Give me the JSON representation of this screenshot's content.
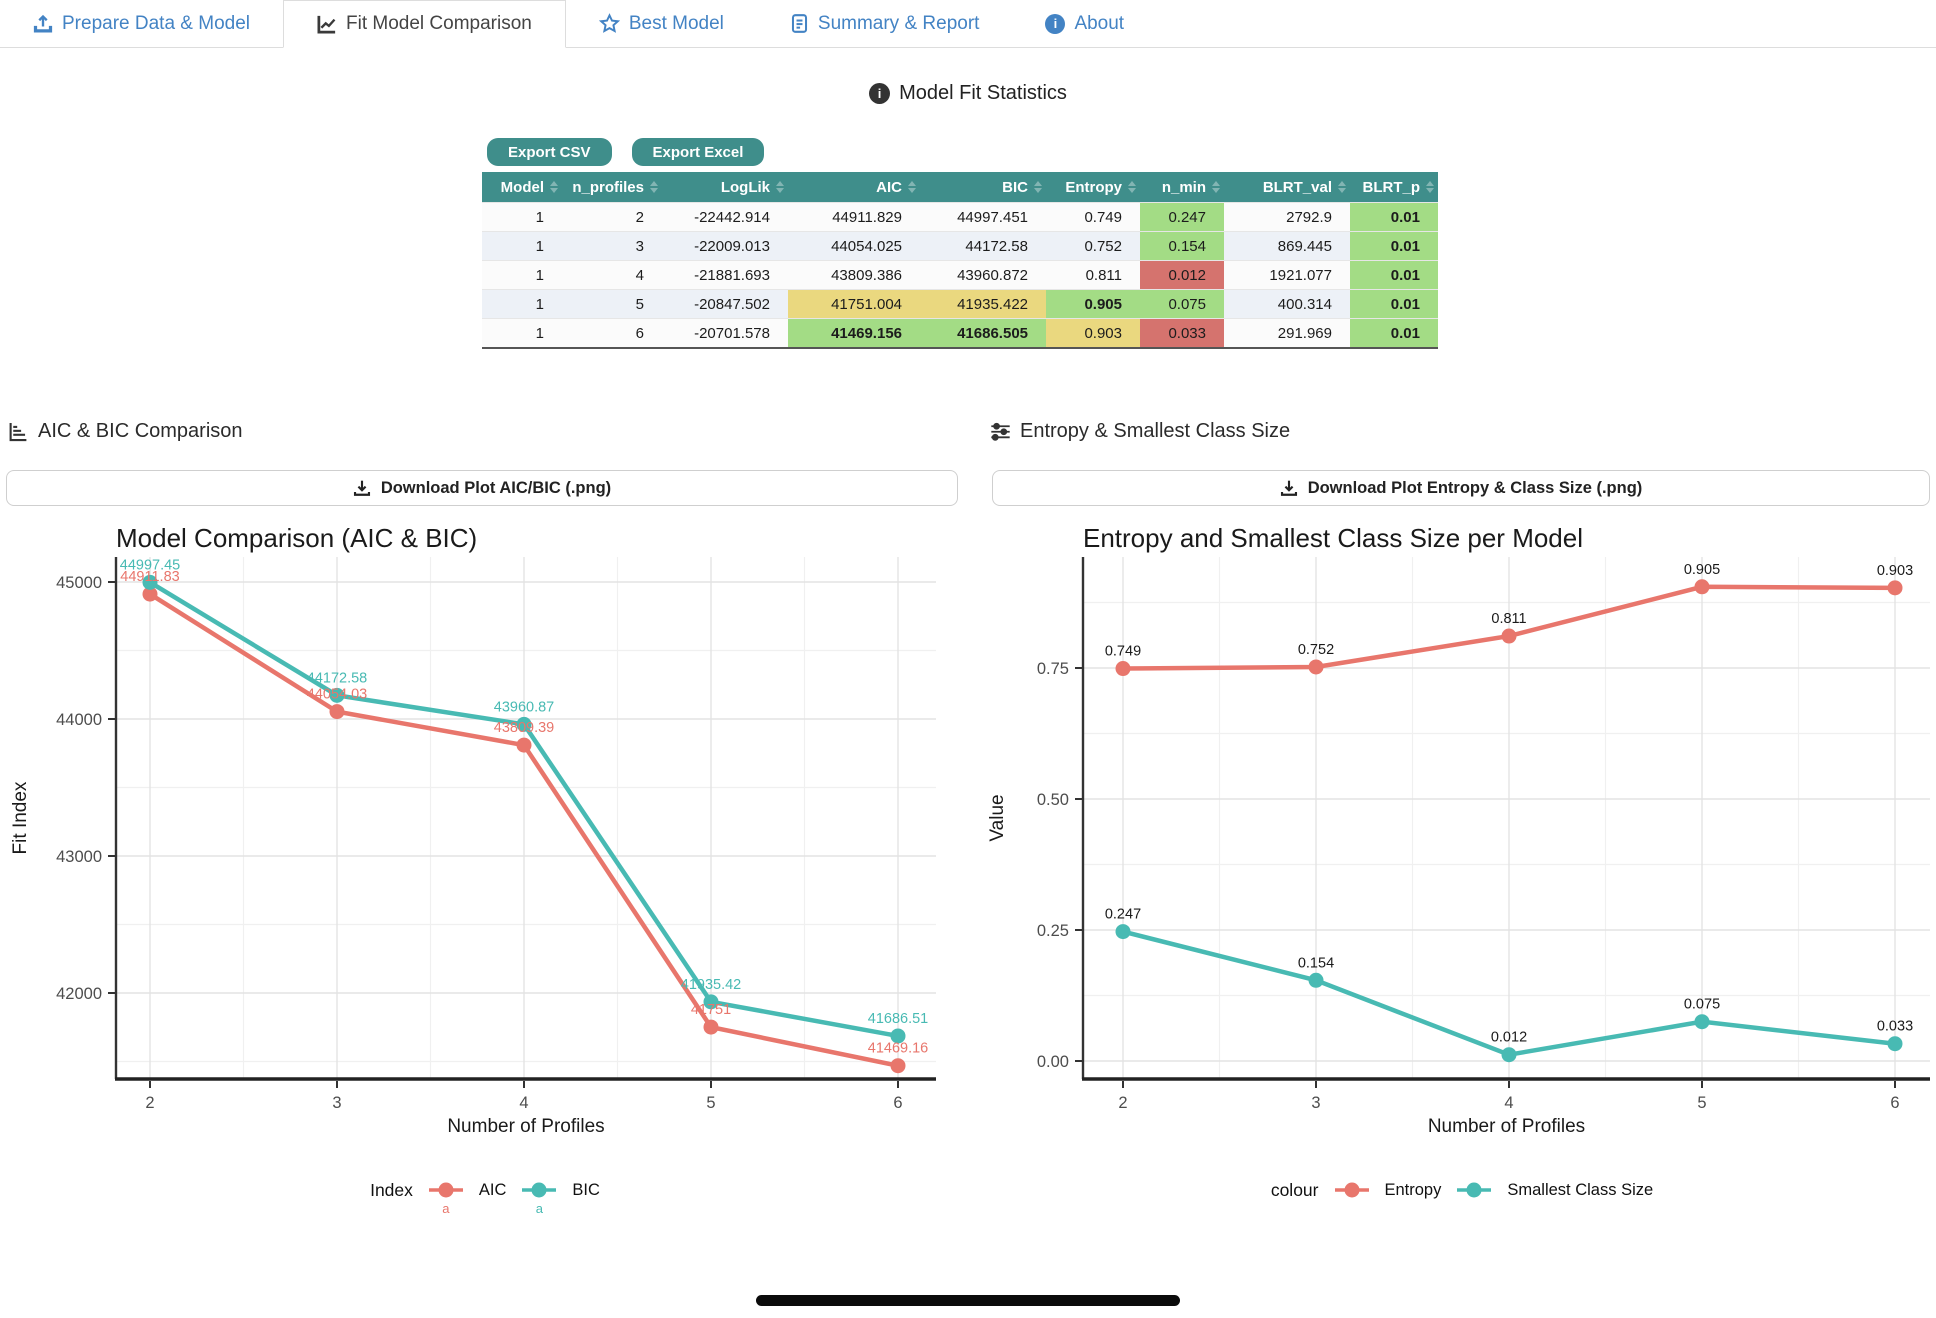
{
  "tabs": [
    {
      "label": "Prepare Data & Model",
      "icon": "upload-icon",
      "active": false
    },
    {
      "label": "Fit Model Comparison",
      "icon": "graph-icon",
      "active": true
    },
    {
      "label": "Best Model",
      "icon": "star-icon",
      "active": false
    },
    {
      "label": "Summary & Report",
      "icon": "file-text-icon",
      "active": false
    },
    {
      "label": "About",
      "icon": "info-circle-icon",
      "active": false
    }
  ],
  "stats": {
    "title": "Model Fit Statistics",
    "title_icon": "info-circle-icon",
    "export_csv_label": "Export CSV",
    "export_excel_label": "Export Excel",
    "table": {
      "columns": [
        "Model",
        "n_profiles",
        "LogLik",
        "AIC",
        "BIC",
        "Entropy",
        "n_min",
        "BLRT_val",
        "BLRT_p"
      ],
      "rows": [
        {
          "cells": [
            {
              "v": "1"
            },
            {
              "v": "2"
            },
            {
              "v": "-22442.914"
            },
            {
              "v": "44911.829"
            },
            {
              "v": "44997.451"
            },
            {
              "v": "0.749"
            },
            {
              "v": "0.247",
              "hl": "green"
            },
            {
              "v": "2792.9"
            },
            {
              "v": "0.01",
              "hl": "green",
              "b": true
            }
          ]
        },
        {
          "cells": [
            {
              "v": "1"
            },
            {
              "v": "3"
            },
            {
              "v": "-22009.013"
            },
            {
              "v": "44054.025"
            },
            {
              "v": "44172.58"
            },
            {
              "v": "0.752"
            },
            {
              "v": "0.154",
              "hl": "green"
            },
            {
              "v": "869.445"
            },
            {
              "v": "0.01",
              "hl": "green",
              "b": true
            }
          ]
        },
        {
          "cells": [
            {
              "v": "1"
            },
            {
              "v": "4"
            },
            {
              "v": "-21881.693"
            },
            {
              "v": "43809.386"
            },
            {
              "v": "43960.872"
            },
            {
              "v": "0.811"
            },
            {
              "v": "0.012",
              "hl": "red"
            },
            {
              "v": "1921.077"
            },
            {
              "v": "0.01",
              "hl": "green",
              "b": true
            }
          ]
        },
        {
          "cells": [
            {
              "v": "1"
            },
            {
              "v": "5"
            },
            {
              "v": "-20847.502"
            },
            {
              "v": "41751.004",
              "hl": "yellow"
            },
            {
              "v": "41935.422",
              "hl": "yellow"
            },
            {
              "v": "0.905",
              "hl": "green",
              "b": true
            },
            {
              "v": "0.075",
              "hl": "green"
            },
            {
              "v": "400.314"
            },
            {
              "v": "0.01",
              "hl": "green",
              "b": true
            }
          ]
        },
        {
          "cells": [
            {
              "v": "1"
            },
            {
              "v": "6"
            },
            {
              "v": "-20701.578"
            },
            {
              "v": "41469.156",
              "hl": "green",
              "b": true
            },
            {
              "v": "41686.505",
              "hl": "green",
              "b": true
            },
            {
              "v": "0.903",
              "hl": "yellow"
            },
            {
              "v": "0.033",
              "hl": "red"
            },
            {
              "v": "291.969"
            },
            {
              "v": "0.01",
              "hl": "green",
              "b": true
            }
          ]
        }
      ]
    }
  },
  "panels": {
    "left": {
      "heading": "AIC & BIC Comparison",
      "heading_icon": "bar-chart-steps-icon",
      "download_label": "Download Plot AIC/BIC (.png)",
      "download_icon": "download-icon"
    },
    "right": {
      "heading": "Entropy & Smallest Class Size",
      "heading_icon": "sliders-icon",
      "download_label": "Download Plot Entropy & Class Size (.png)",
      "download_icon": "download-icon"
    }
  },
  "chart_data": [
    {
      "type": "line",
      "title": "Model Comparison (AIC & BIC)",
      "xlabel": "Number of Profiles",
      "ylabel": "Fit Index",
      "x": [
        2,
        3,
        4,
        5,
        6
      ],
      "series": [
        {
          "name": "AIC",
          "color": "#e8766c",
          "values": [
            44911.829,
            44054.025,
            43809.386,
            41751.004,
            41469.156
          ],
          "labels": [
            "44911.83",
            "44054.03",
            "43809.39",
            "41751",
            "41469.16"
          ]
        },
        {
          "name": "BIC",
          "color": "#48bab3",
          "values": [
            44997.451,
            44172.58,
            43960.872,
            41935.422,
            41686.505
          ],
          "labels": [
            "44997.45",
            "44172.58",
            "43960.87",
            "41935.42",
            "41686.51"
          ]
        }
      ],
      "yticks": [
        42000,
        43000,
        44000,
        45000
      ],
      "ytick_labels": [
        "42000",
        "43000",
        "44000",
        "45000"
      ],
      "ylim": [
        41400,
        45150
      ],
      "grid": true,
      "legend_position": "bottom",
      "legend_title": "Index",
      "legend_key_letter": "a",
      "point_label_color": "series"
    },
    {
      "type": "line",
      "title": "Entropy and Smallest Class Size per Model",
      "xlabel": "Number of Profiles",
      "ylabel": "Value",
      "x": [
        2,
        3,
        4,
        5,
        6
      ],
      "series": [
        {
          "name": "Entropy",
          "color": "#e8766c",
          "values": [
            0.749,
            0.752,
            0.811,
            0.905,
            0.903
          ],
          "labels": [
            "0.749",
            "0.752",
            "0.811",
            "0.905",
            "0.903"
          ]
        },
        {
          "name": "Smallest Class Size",
          "color": "#48bab3",
          "values": [
            0.247,
            0.154,
            0.012,
            0.075,
            0.033
          ],
          "labels": [
            "0.247",
            "0.154",
            "0.012",
            "0.075",
            "0.033"
          ]
        }
      ],
      "yticks": [
        0,
        0.25,
        0.5,
        0.75
      ],
      "ytick_labels": [
        "0.00",
        "0.25",
        "0.50",
        "0.75"
      ],
      "ylim": [
        -0.05,
        0.96
      ],
      "grid": true,
      "legend_position": "bottom",
      "legend_title": "colour",
      "point_label_color": "black"
    }
  ],
  "colors": {
    "tab_blue": "#4383c4",
    "teal": "#3f8e8b",
    "highlight_green": "#a3dc85",
    "highlight_yellow": "#ead87f",
    "highlight_red": "#d5736e",
    "series_salmon": "#e8766c",
    "series_teal": "#48bab3"
  }
}
